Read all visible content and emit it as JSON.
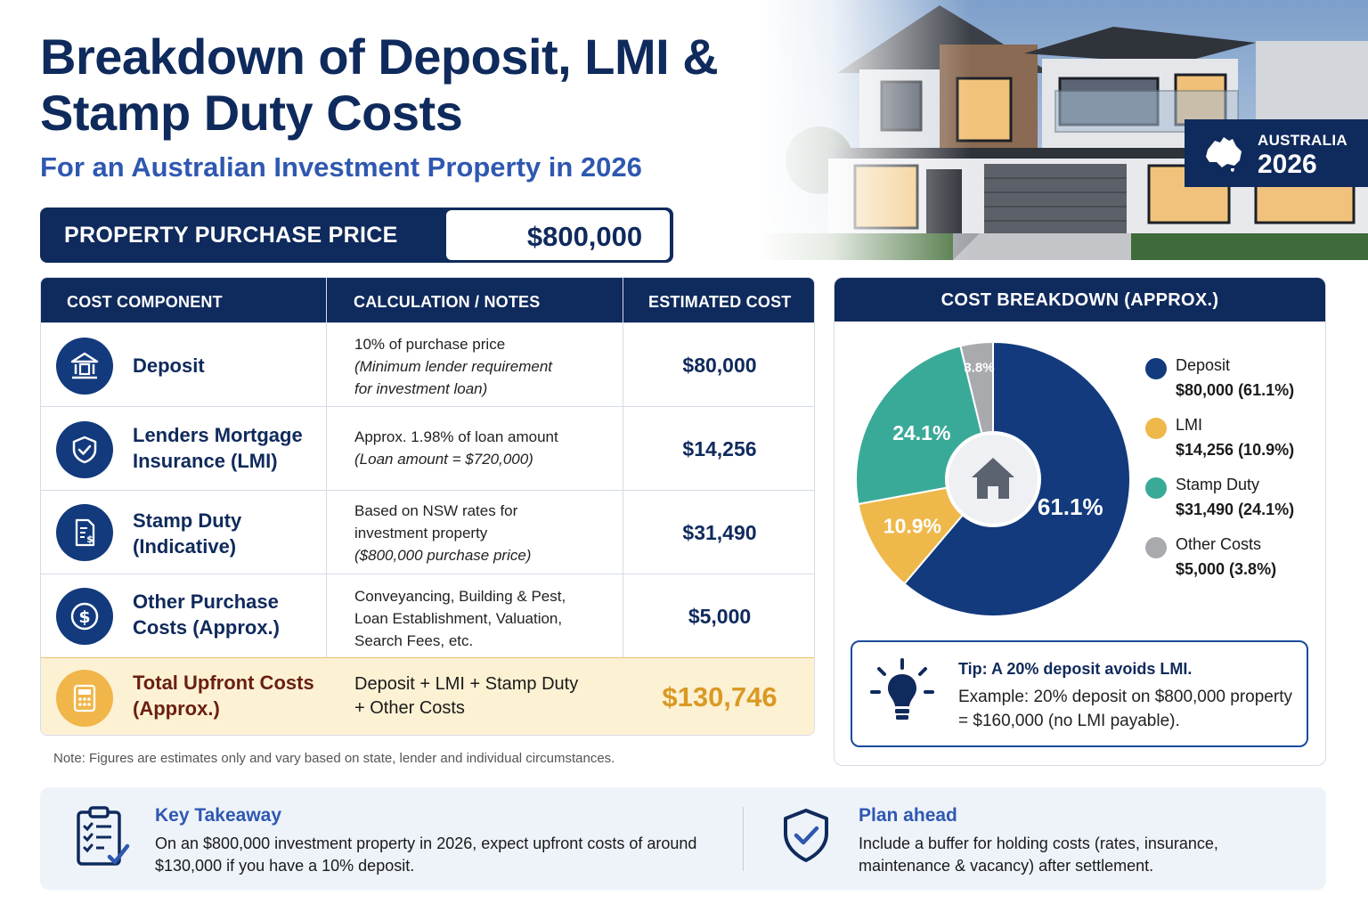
{
  "header": {
    "title_line1": "Breakdown of Deposit, LMI &",
    "title_line2": "Stamp Duty Costs",
    "subtitle": "For an Australian Investment Property in 2026"
  },
  "badge": {
    "country": "AUSTRALIA",
    "year": "2026"
  },
  "price": {
    "label": "PROPERTY PURCHASE PRICE",
    "value": "$800,000"
  },
  "table": {
    "headers": [
      "COST COMPONENT",
      "CALCULATION / NOTES",
      "ESTIMATED COST"
    ],
    "rows": [
      {
        "icon": "bank-icon",
        "component_l1": "Deposit",
        "component_l2": "",
        "note_l1": "10% of purchase price",
        "note_l2": "(Minimum lender requirement",
        "note_l3": "for investment loan)",
        "cost": "$80,000"
      },
      {
        "icon": "shield-check-icon",
        "component_l1": "Lenders Mortgage",
        "component_l2": "Insurance (LMI)",
        "note_l1": "Approx. 1.98% of loan amount",
        "note_l2": "(Loan amount = $720,000)",
        "note_l3": "",
        "cost": "$14,256"
      },
      {
        "icon": "document-dollar-icon",
        "component_l1": "Stamp Duty",
        "component_l2": "(Indicative)",
        "note_l1": "Based on NSW rates for",
        "note_l2": "investment property",
        "note_l3": "($800,000 purchase price)",
        "cost": "$31,490"
      },
      {
        "icon": "dollar-circle-icon",
        "component_l1": "Other Purchase",
        "component_l2": "Costs (Approx.)",
        "note_l1": "Conveyancing, Building & Pest,",
        "note_l2": "Loan Establishment, Valuation,",
        "note_l3": "Search Fees, etc.",
        "cost": "$5,000"
      }
    ],
    "total": {
      "icon": "calculator-icon",
      "component_l1": "Total Upfront Costs",
      "component_l2": "(Approx.)",
      "note_l1": "Deposit + LMI + Stamp Duty",
      "note_l2": "+ Other Costs",
      "cost": "$130,746"
    }
  },
  "note": "Note: Figures are estimates only and vary based on state, lender and individual circumstances.",
  "chart_data": {
    "type": "pie",
    "title": "COST BREAKDOWN (APPROX.)",
    "center_icon": "house-icon",
    "slices": [
      {
        "name": "Deposit",
        "value": 80000,
        "percent": 61.1,
        "percent_label": "61.1%",
        "legend_value": "$80,000 (61.1%)",
        "color": "#123a7d"
      },
      {
        "name": "LMI",
        "value": 14256,
        "percent": 10.9,
        "percent_label": "10.9%",
        "legend_value": "$14,256 (10.9%)",
        "color": "#efb84b"
      },
      {
        "name": "Stamp Duty",
        "value": 31490,
        "percent": 24.1,
        "percent_label": "24.1%",
        "legend_value": "$31,490 (24.1%)",
        "color": "#3aaa98"
      },
      {
        "name": "Other Costs",
        "value": 5000,
        "percent": 3.8,
        "percent_label": "3.8%",
        "legend_value": "$5,000 (3.8%)",
        "color": "#a9aaae"
      }
    ],
    "legend_position": "right"
  },
  "tip": {
    "icon": "lightbulb-icon",
    "title": "Tip: A 20% deposit avoids LMI.",
    "text": "Example: 20% deposit on $800,000 property = $160,000 (no LMI payable)."
  },
  "bottom": {
    "left": {
      "icon": "clipboard-checklist-icon",
      "title": "Key Takeaway",
      "text": "On an $800,000 investment property in 2026, expect upfront costs of around $130,000 if you have a 10% deposit."
    },
    "right": {
      "icon": "shield-check-icon",
      "title": "Plan ahead",
      "text": "Include a buffer for holding costs (rates, insurance, maintenance & vacancy) after settlement."
    }
  }
}
